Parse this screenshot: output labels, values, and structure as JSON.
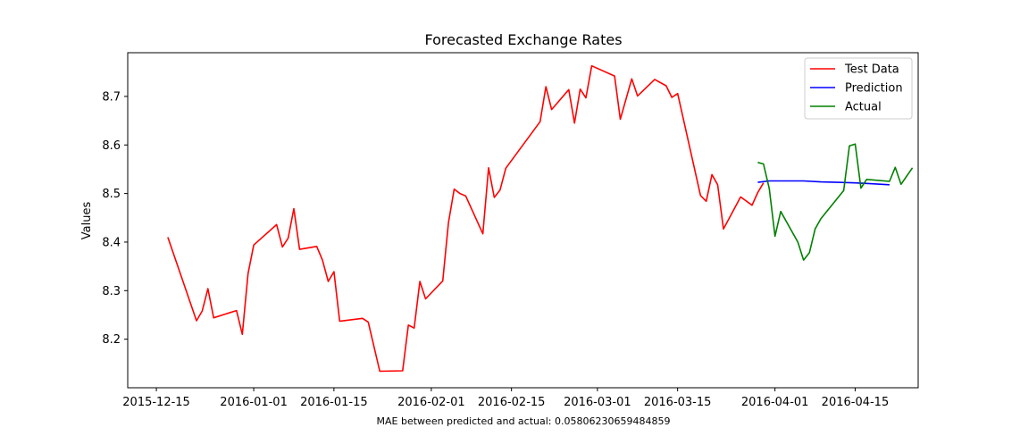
{
  "chart_data": {
    "type": "line",
    "title": "Forecasted Exchange Rates",
    "xlabel": "",
    "ylabel": "Values",
    "xlim": [
      "2015-12-10",
      "2016-04-26"
    ],
    "ylim": [
      8.1,
      8.79
    ],
    "x_ticks": [
      "2015-12-15",
      "2016-01-01",
      "2016-01-15",
      "2016-02-01",
      "2016-02-15",
      "2016-03-01",
      "2016-03-15",
      "2016-04-01",
      "2016-04-15"
    ],
    "y_ticks": [
      8.2,
      8.3,
      8.4,
      8.5,
      8.6,
      8.7
    ],
    "grid": false,
    "legend_position": "top-right",
    "footer": "MAE between predicted and actual: 0.05806230659484859",
    "series": [
      {
        "name": "Test Data",
        "color": "#ff0000",
        "points": [
          [
            "2015-12-17",
            8.41
          ],
          [
            "2015-12-22",
            8.238
          ],
          [
            "2015-12-23",
            8.258
          ],
          [
            "2015-12-24",
            8.304
          ],
          [
            "2015-12-25",
            8.244
          ],
          [
            "2015-12-29",
            8.259
          ],
          [
            "2015-12-30",
            8.21
          ],
          [
            "2015-12-31",
            8.335
          ],
          [
            "2016-01-01",
            8.394
          ],
          [
            "2016-01-05",
            8.436
          ],
          [
            "2016-01-06",
            8.39
          ],
          [
            "2016-01-07",
            8.408
          ],
          [
            "2016-01-08",
            8.469
          ],
          [
            "2016-01-09",
            8.385
          ],
          [
            "2016-01-12",
            8.391
          ],
          [
            "2016-01-13",
            8.363
          ],
          [
            "2016-01-14",
            8.319
          ],
          [
            "2016-01-15",
            8.339
          ],
          [
            "2016-01-16",
            8.237
          ],
          [
            "2016-01-20",
            8.243
          ],
          [
            "2016-01-21",
            8.235
          ],
          [
            "2016-01-23",
            8.134
          ],
          [
            "2016-01-27",
            8.135
          ],
          [
            "2016-01-28",
            8.229
          ],
          [
            "2016-01-29",
            8.223
          ],
          [
            "2016-01-30",
            8.319
          ],
          [
            "2016-01-31",
            8.283
          ],
          [
            "2016-02-03",
            8.32
          ],
          [
            "2016-02-04",
            8.44
          ],
          [
            "2016-02-05",
            8.509
          ],
          [
            "2016-02-06",
            8.5
          ],
          [
            "2016-02-07",
            8.495
          ],
          [
            "2016-02-10",
            8.417
          ],
          [
            "2016-02-11",
            8.553
          ],
          [
            "2016-02-12",
            8.492
          ],
          [
            "2016-02-13",
            8.507
          ],
          [
            "2016-02-14",
            8.552
          ],
          [
            "2016-02-20",
            8.648
          ],
          [
            "2016-02-21",
            8.72
          ],
          [
            "2016-02-22",
            8.673
          ],
          [
            "2016-02-25",
            8.714
          ],
          [
            "2016-02-26",
            8.645
          ],
          [
            "2016-02-27",
            8.715
          ],
          [
            "2016-02-28",
            8.697
          ],
          [
            "2016-02-29",
            8.763
          ],
          [
            "2016-03-04",
            8.742
          ],
          [
            "2016-03-05",
            8.653
          ],
          [
            "2016-03-07",
            8.736
          ],
          [
            "2016-03-08",
            8.701
          ],
          [
            "2016-03-11",
            8.735
          ],
          [
            "2016-03-13",
            8.722
          ],
          [
            "2016-03-14",
            8.698
          ],
          [
            "2016-03-15",
            8.706
          ],
          [
            "2016-03-19",
            8.496
          ],
          [
            "2016-03-20",
            8.484
          ],
          [
            "2016-03-21",
            8.539
          ],
          [
            "2016-03-22",
            8.518
          ],
          [
            "2016-03-23",
            8.427
          ],
          [
            "2016-03-26",
            8.493
          ],
          [
            "2016-03-28",
            8.476
          ],
          [
            "2016-03-29",
            8.502
          ],
          [
            "2016-03-30",
            8.522
          ]
        ]
      },
      {
        "name": "Prediction",
        "color": "#0000ff",
        "points": [
          [
            "2016-03-29",
            8.523
          ],
          [
            "2016-03-31",
            8.526
          ],
          [
            "2016-04-03",
            8.526
          ],
          [
            "2016-04-06",
            8.526
          ],
          [
            "2016-04-09",
            8.524
          ],
          [
            "2016-04-12",
            8.523
          ],
          [
            "2016-04-15",
            8.522
          ],
          [
            "2016-04-18",
            8.52
          ],
          [
            "2016-04-21",
            8.518
          ]
        ]
      },
      {
        "name": "Actual",
        "color": "#008000",
        "points": [
          [
            "2016-03-29",
            8.564
          ],
          [
            "2016-03-30",
            8.561
          ],
          [
            "2016-03-31",
            8.51
          ],
          [
            "2016-04-01",
            8.412
          ],
          [
            "2016-04-02",
            8.463
          ],
          [
            "2016-04-05",
            8.4
          ],
          [
            "2016-04-06",
            8.363
          ],
          [
            "2016-04-07",
            8.378
          ],
          [
            "2016-04-08",
            8.427
          ],
          [
            "2016-04-09",
            8.448
          ],
          [
            "2016-04-13",
            8.506
          ],
          [
            "2016-04-14",
            8.598
          ],
          [
            "2016-04-15",
            8.602
          ],
          [
            "2016-04-16",
            8.511
          ],
          [
            "2016-04-17",
            8.529
          ],
          [
            "2016-04-21",
            8.525
          ],
          [
            "2016-04-22",
            8.554
          ],
          [
            "2016-04-23",
            8.519
          ],
          [
            "2016-04-25",
            8.553
          ]
        ]
      }
    ]
  }
}
